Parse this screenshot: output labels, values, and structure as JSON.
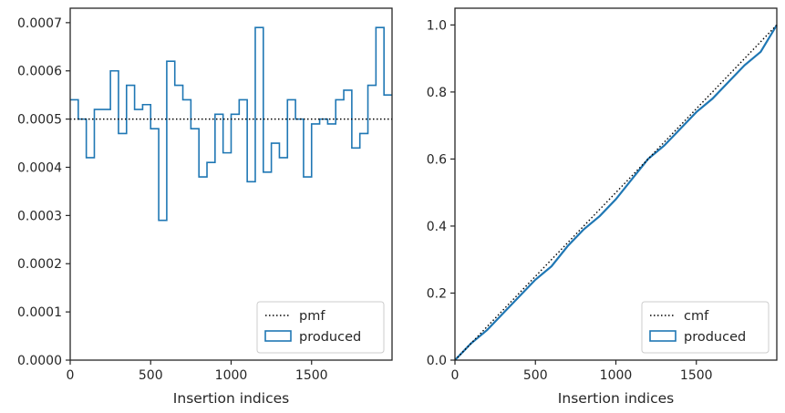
{
  "colors": {
    "produced": "#1f77b4",
    "reference": "#000000",
    "axes": "#262626",
    "background": "#ffffff"
  },
  "chart_data": [
    {
      "type": "step-histogram",
      "xlabel": "Insertion indices",
      "ylabel": "",
      "xlim": [
        0,
        2000
      ],
      "ylim": [
        0,
        0.00073
      ],
      "xticks": [
        0,
        500,
        1000,
        1500
      ],
      "xtick_labels": [
        "0",
        "500",
        "1000",
        "1500"
      ],
      "yticks": [
        0,
        0.0001,
        0.0002,
        0.0003,
        0.0004,
        0.0005,
        0.0006,
        0.0007
      ],
      "ytick_labels": [
        "0.0000",
        "0.0001",
        "0.0002",
        "0.0003",
        "0.0004",
        "0.0005",
        "0.0006",
        "0.0007"
      ],
      "bin_width": 50,
      "series": [
        {
          "name": "produced",
          "style": "step",
          "values": [
            0.00054,
            0.0005,
            0.00042,
            0.00052,
            0.00052,
            0.0006,
            0.00047,
            0.00057,
            0.00052,
            0.00053,
            0.00048,
            0.00029,
            0.00062,
            0.00057,
            0.00054,
            0.00048,
            0.00038,
            0.00041,
            0.00051,
            0.00043,
            0.00051,
            0.00054,
            0.00037,
            0.00069,
            0.00039,
            0.00045,
            0.00042,
            0.00054,
            0.0005,
            0.00038,
            0.00049,
            0.0005,
            0.00049,
            0.00054,
            0.00056,
            0.00044,
            0.00047,
            0.00057,
            0.00069,
            0.00055
          ]
        },
        {
          "name": "pmf",
          "style": "dotted",
          "constant": 0.0005
        }
      ],
      "legend": {
        "placement": "lower-right",
        "entries": [
          "pmf",
          "produced"
        ]
      }
    },
    {
      "type": "line",
      "xlabel": "Insertion indices",
      "ylabel": "",
      "xlim": [
        0,
        2000
      ],
      "ylim": [
        0,
        1.05
      ],
      "xticks": [
        0,
        500,
        1000,
        1500
      ],
      "xtick_labels": [
        "0",
        "500",
        "1000",
        "1500"
      ],
      "yticks": [
        0,
        0.2,
        0.4,
        0.6,
        0.8,
        1.0
      ],
      "ytick_labels": [
        "0.0",
        "0.2",
        "0.4",
        "0.6",
        "0.8",
        "1.0"
      ],
      "series": [
        {
          "name": "produced",
          "style": "solid",
          "x": [
            0,
            100,
            200,
            300,
            400,
            500,
            600,
            700,
            800,
            900,
            1000,
            1100,
            1200,
            1300,
            1400,
            1500,
            1600,
            1700,
            1800,
            1900,
            2000
          ],
          "y": [
            0,
            0.05,
            0.09,
            0.14,
            0.19,
            0.24,
            0.28,
            0.34,
            0.39,
            0.43,
            0.48,
            0.54,
            0.6,
            0.64,
            0.69,
            0.74,
            0.78,
            0.83,
            0.88,
            0.92,
            1.0
          ]
        },
        {
          "name": "cmf",
          "style": "dotted",
          "x": [
            0,
            2000
          ],
          "y": [
            0,
            1.0
          ]
        }
      ],
      "legend": {
        "placement": "lower-right",
        "entries": [
          "cmf",
          "produced"
        ]
      }
    }
  ]
}
